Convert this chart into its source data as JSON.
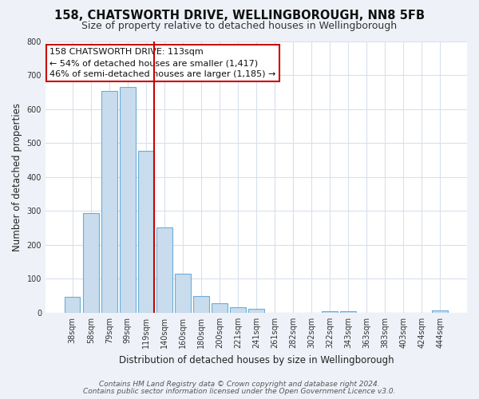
{
  "title": "158, CHATSWORTH DRIVE, WELLINGBOROUGH, NN8 5FB",
  "subtitle": "Size of property relative to detached houses in Wellingborough",
  "xlabel": "Distribution of detached houses by size in Wellingborough",
  "ylabel": "Number of detached properties",
  "bar_labels": [
    "38sqm",
    "58sqm",
    "79sqm",
    "99sqm",
    "119sqm",
    "140sqm",
    "160sqm",
    "180sqm",
    "200sqm",
    "221sqm",
    "241sqm",
    "261sqm",
    "282sqm",
    "302sqm",
    "322sqm",
    "343sqm",
    "363sqm",
    "383sqm",
    "403sqm",
    "424sqm",
    "444sqm"
  ],
  "bar_values": [
    47,
    293,
    652,
    665,
    478,
    252,
    114,
    49,
    27,
    17,
    12,
    0,
    0,
    0,
    5,
    4,
    0,
    0,
    0,
    0,
    7
  ],
  "bar_color": "#c8dced",
  "bar_edge_color": "#6aaed6",
  "vline_color": "#cc0000",
  "annotation_title": "158 CHATSWORTH DRIVE: 113sqm",
  "annotation_line1": "← 54% of detached houses are smaller (1,417)",
  "annotation_line2": "46% of semi-detached houses are larger (1,185) →",
  "annotation_box_edge_color": "#cc0000",
  "ylim": [
    0,
    800
  ],
  "yticks": [
    0,
    100,
    200,
    300,
    400,
    500,
    600,
    700,
    800
  ],
  "footer_line1": "Contains HM Land Registry data © Crown copyright and database right 2024.",
  "footer_line2": "Contains public sector information licensed under the Open Government Licence v3.0.",
  "plot_bg_color": "#ffffff",
  "fig_bg_color": "#eef2f8",
  "grid_color": "#d8e0ec",
  "title_fontsize": 10.5,
  "subtitle_fontsize": 9,
  "axis_label_fontsize": 8.5,
  "tick_fontsize": 7,
  "annotation_fontsize": 8,
  "footer_fontsize": 6.5,
  "vline_bar_index": 4
}
